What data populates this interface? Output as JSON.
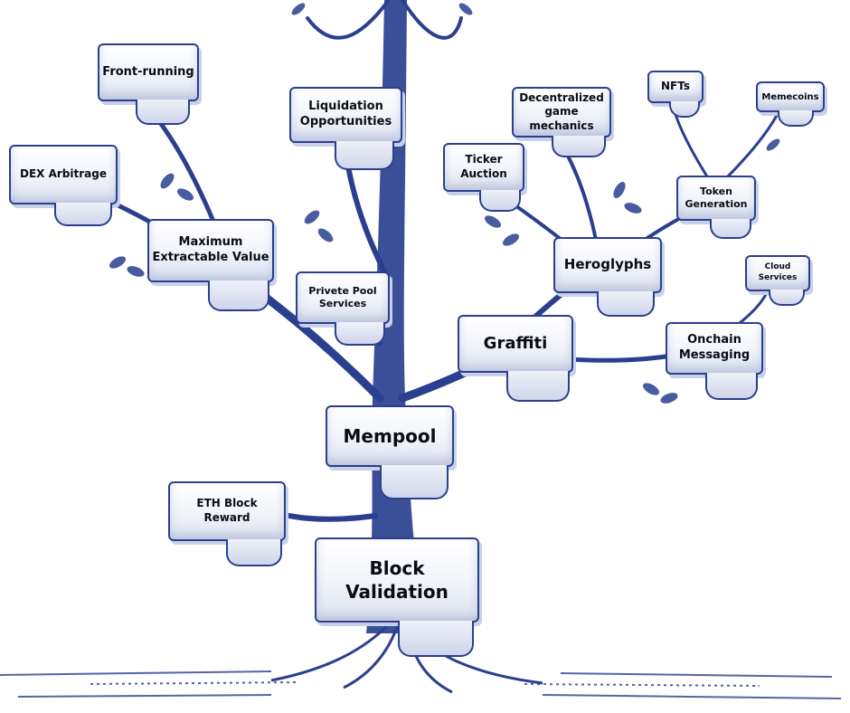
{
  "nodes": {
    "block_validation": "Block\nValidation",
    "mempool": "Mempool",
    "eth_block_reward": "ETH Block\nReward",
    "maximum_extractable_value": "Maximum\nExtractable Value",
    "dex_arbitrage": "DEX Arbitrage",
    "front_running": "Front-running",
    "liquidation_opportunities": "Liquidation\nOpportunities",
    "private_pool_services": "Privete Pool\nServices",
    "graffiti": "Graffiti",
    "heroglyphs": "Heroglyphs",
    "ticker_auction": "Ticker\nAuction",
    "decentralized_game_mechanics": "Decentralized\ngame mechanics",
    "token_generation": "Token\nGeneration",
    "nfts": "NFTs",
    "memecoins": "Memecoins",
    "onchain_messaging": "Onchain\nMessaging",
    "cloud_services": "Cloud\nServices"
  },
  "colors": {
    "ink": "#2a3f8f",
    "text": "#0b0b14",
    "background": "#ffffff"
  }
}
